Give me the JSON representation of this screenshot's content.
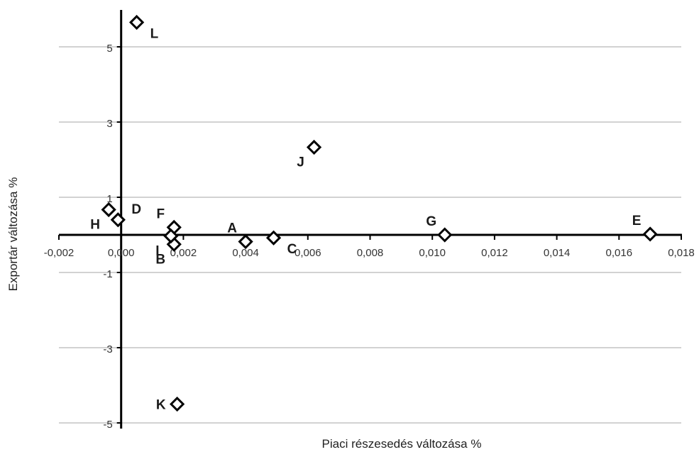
{
  "chart_data": {
    "type": "scatter",
    "xlabel": "Piaci részesedés változása %",
    "ylabel": "Exportár változása %",
    "xlim": [
      -0.002,
      0.018
    ],
    "ylim": [
      -5,
      6
    ],
    "x_ticks": [
      {
        "value": -0.002,
        "label": "-0,002"
      },
      {
        "value": 0.0,
        "label": "0,000"
      },
      {
        "value": 0.002,
        "label": "0,002"
      },
      {
        "value": 0.004,
        "label": "0,004"
      },
      {
        "value": 0.006,
        "label": "0,006"
      },
      {
        "value": 0.008,
        "label": "0,008"
      },
      {
        "value": 0.01,
        "label": "0,010"
      },
      {
        "value": 0.012,
        "label": "0,012"
      },
      {
        "value": 0.014,
        "label": "0,014"
      },
      {
        "value": 0.016,
        "label": "0,016"
      },
      {
        "value": 0.018,
        "label": "0,018"
      }
    ],
    "y_ticks": [
      {
        "value": 5,
        "label": "5"
      },
      {
        "value": 3,
        "label": "3"
      },
      {
        "value": 1,
        "label": "1"
      },
      {
        "value": -1,
        "label": "-1"
      },
      {
        "value": -3,
        "label": "-3"
      },
      {
        "value": -5,
        "label": "-5"
      }
    ],
    "grid": true,
    "marker": "diamond",
    "colors": {
      "marker_stroke": "#000000",
      "marker_fill": "#ffffff",
      "grid": "#a6a6a6",
      "axis": "#000000"
    },
    "points": [
      {
        "label": "A",
        "x": 0.004,
        "y": -0.18,
        "label_pos": "top-left"
      },
      {
        "label": "B",
        "x": 0.0017,
        "y": -0.25,
        "label_pos": "bottom-left"
      },
      {
        "label": "C",
        "x": 0.0049,
        "y": -0.08,
        "label_pos": "bottom-right"
      },
      {
        "label": "D",
        "x": -0.0001,
        "y": 0.4,
        "label_pos": "top-right"
      },
      {
        "label": "E",
        "x": 0.017,
        "y": 0.02,
        "label_pos": "top-left"
      },
      {
        "label": "F",
        "x": 0.0017,
        "y": 0.2,
        "label_pos": "top-left"
      },
      {
        "label": "G",
        "x": 0.0104,
        "y": 0.0,
        "label_pos": "top-left"
      },
      {
        "label": "H",
        "x": -0.0004,
        "y": 0.67,
        "label_pos": "bottom-left"
      },
      {
        "label": "I",
        "x": 0.0016,
        "y": -0.03,
        "label_pos": "bottom-left"
      },
      {
        "label": "J",
        "x": 0.0062,
        "y": 2.33,
        "label_pos": "bottom-left"
      },
      {
        "label": "K",
        "x": 0.0018,
        "y": -4.5,
        "label_pos": "left"
      },
      {
        "label": "L",
        "x": 0.0005,
        "y": 5.65,
        "label_pos": "bottom-right"
      }
    ]
  }
}
